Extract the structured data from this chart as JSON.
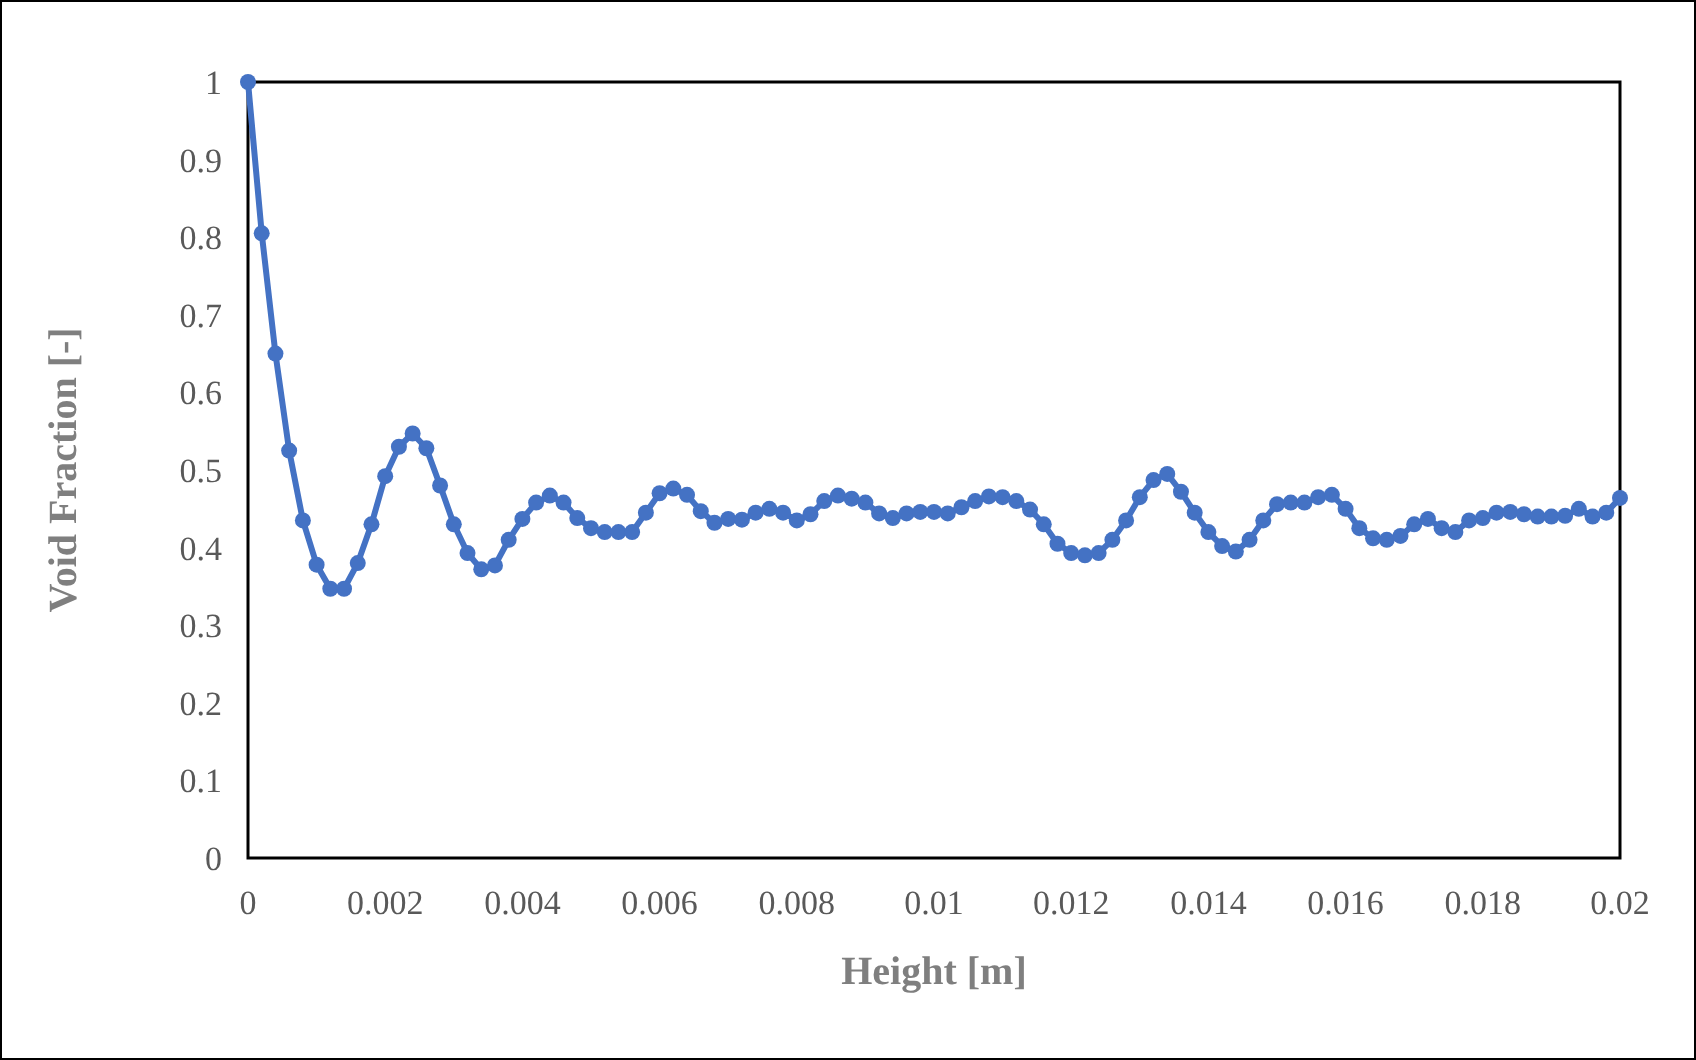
{
  "chart_data": {
    "type": "line",
    "xlabel": "Height [m]",
    "ylabel": "Void Fraction [-]",
    "x": [
      0,
      0.0002,
      0.0004,
      0.0006,
      0.0008,
      0.001,
      0.0012,
      0.0014,
      0.0016,
      0.0018,
      0.002,
      0.0022,
      0.0024,
      0.0026,
      0.0028,
      0.003,
      0.0032,
      0.0034,
      0.0036,
      0.0038,
      0.004,
      0.0042,
      0.0044,
      0.0046,
      0.0048,
      0.005,
      0.0052,
      0.0054,
      0.0056,
      0.0058,
      0.006,
      0.0062,
      0.0064,
      0.0066,
      0.0068,
      0.007,
      0.0072,
      0.0074,
      0.0076,
      0.0078,
      0.008,
      0.0082,
      0.0084,
      0.0086,
      0.0088,
      0.009,
      0.0092,
      0.0094,
      0.0096,
      0.0098,
      0.01,
      0.0102,
      0.0104,
      0.0106,
      0.0108,
      0.011,
      0.0112,
      0.0114,
      0.0116,
      0.0118,
      0.012,
      0.0122,
      0.0124,
      0.0126,
      0.0128,
      0.013,
      0.0132,
      0.0134,
      0.0136,
      0.0138,
      0.014,
      0.0142,
      0.0144,
      0.0146,
      0.0148,
      0.015,
      0.0152,
      0.0154,
      0.0156,
      0.0158,
      0.016,
      0.0162,
      0.0164,
      0.0166,
      0.0168,
      0.017,
      0.0172,
      0.0174,
      0.0176,
      0.0178,
      0.018,
      0.0182,
      0.0184,
      0.0186,
      0.0188,
      0.019,
      0.0192,
      0.0194,
      0.0196,
      0.0198,
      0.02
    ],
    "series": [
      {
        "color": "#4472c4",
        "values": [
          1.0,
          0.805,
          0.65,
          0.525,
          0.435,
          0.378,
          0.347,
          0.347,
          0.38,
          0.43,
          0.492,
          0.53,
          0.547,
          0.528,
          0.48,
          0.43,
          0.393,
          0.372,
          0.377,
          0.41,
          0.437,
          0.458,
          0.467,
          0.458,
          0.438,
          0.425,
          0.42,
          0.42,
          0.42,
          0.445,
          0.47,
          0.476,
          0.468,
          0.447,
          0.432,
          0.437,
          0.436,
          0.445,
          0.45,
          0.445,
          0.435,
          0.443,
          0.46,
          0.467,
          0.463,
          0.458,
          0.444,
          0.438,
          0.444,
          0.446,
          0.446,
          0.444,
          0.452,
          0.46,
          0.466,
          0.465,
          0.46,
          0.449,
          0.43,
          0.405,
          0.393,
          0.39,
          0.393,
          0.41,
          0.435,
          0.465,
          0.487,
          0.495,
          0.472,
          0.445,
          0.42,
          0.402,
          0.395,
          0.41,
          0.435,
          0.456,
          0.458,
          0.458,
          0.465,
          0.468,
          0.45,
          0.425,
          0.412,
          0.41,
          0.415,
          0.43,
          0.437,
          0.425,
          0.42,
          0.435,
          0.438,
          0.445,
          0.446,
          0.443,
          0.44,
          0.44,
          0.441,
          0.45,
          0.44,
          0.445,
          0.464
        ]
      }
    ],
    "xlim": [
      0,
      0.02
    ],
    "xticks": [
      0,
      0.002,
      0.004,
      0.006,
      0.008,
      0.01,
      0.012,
      0.014,
      0.016,
      0.018,
      0.02
    ],
    "ylim": [
      0,
      1
    ],
    "yticks": [
      0,
      0.1,
      0.2,
      0.3,
      0.4,
      0.5,
      0.6,
      0.7,
      0.8,
      0.9,
      1
    ],
    "grid": false,
    "marker": "circle",
    "line_style": "solid"
  }
}
